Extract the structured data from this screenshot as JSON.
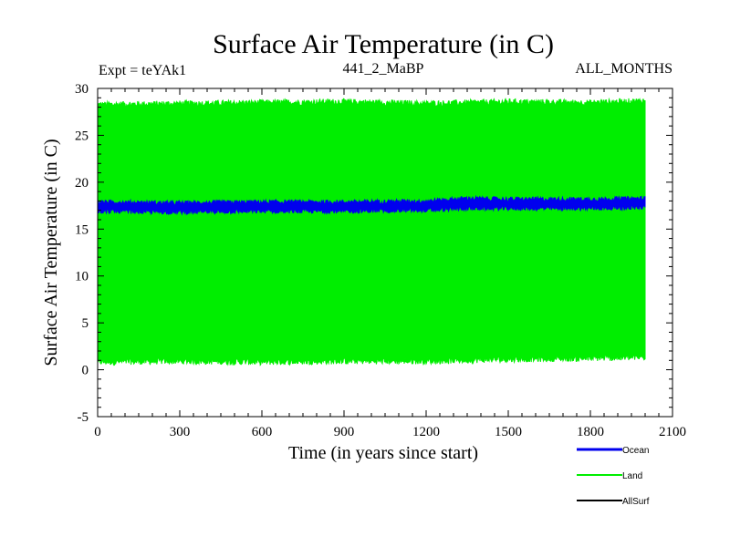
{
  "chart_data": {
    "type": "line",
    "title": "Surface Air Temperature (in C)",
    "subtitle_left": "Expt = teYAk1",
    "subtitle_center": "441_2_MaBP",
    "subtitle_right": "ALL_MONTHS",
    "xlabel": "Time (in years since start)",
    "ylabel": "Surface Air Temperature (in C)",
    "xlim": [
      0,
      2100
    ],
    "ylim": [
      -5,
      30
    ],
    "xticks": [
      0,
      300,
      600,
      900,
      1200,
      1500,
      1800,
      2100
    ],
    "yticks": [
      -5,
      0,
      5,
      10,
      15,
      20,
      25,
      30
    ],
    "x_data_range": [
      0,
      2000
    ],
    "series": [
      {
        "name": "Land",
        "color": "#00ee00",
        "kind": "seasonal-band",
        "approx_min": 0.8,
        "approx_max": 28.6,
        "x": [
          0,
          300,
          600,
          900,
          1200,
          1500,
          1800,
          2000
        ],
        "upper": [
          28.3,
          28.4,
          28.5,
          28.6,
          28.4,
          28.6,
          28.5,
          28.7
        ],
        "lower": [
          0.8,
          0.9,
          0.8,
          0.9,
          0.9,
          1.1,
          1.2,
          1.3
        ]
      },
      {
        "name": "Ocean",
        "color": "#0000ee",
        "kind": "seasonal-band",
        "x": [
          0,
          300,
          600,
          900,
          1200,
          1350,
          1500,
          1800,
          2000
        ],
        "upper": [
          17.9,
          17.8,
          17.9,
          17.9,
          18.0,
          18.3,
          18.2,
          18.2,
          18.3
        ],
        "lower": [
          16.9,
          16.8,
          16.9,
          16.9,
          17.0,
          17.2,
          17.2,
          17.2,
          17.3
        ]
      },
      {
        "name": "AllSurf",
        "color": "#000000",
        "kind": "legend-only"
      }
    ],
    "legend": {
      "placement": "bottom-right",
      "entries": [
        "Ocean",
        "Land",
        "AllSurf"
      ]
    }
  }
}
